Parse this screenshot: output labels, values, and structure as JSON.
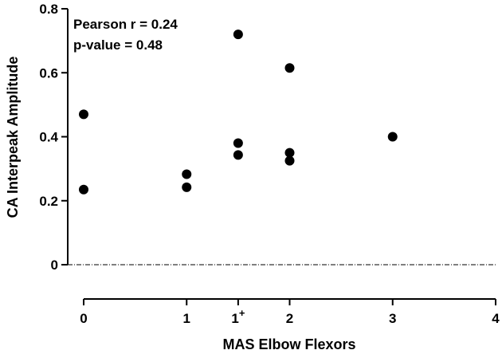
{
  "chart_data": {
    "type": "scatter",
    "title": "",
    "xlabel": "MAS Elbow Flexors",
    "ylabel": "CA Interpeak Amplitude",
    "xlim": [
      0,
      4
    ],
    "ylim": [
      0,
      0.8
    ],
    "x_ticks": [
      {
        "value": 0,
        "label": "0"
      },
      {
        "value": 1,
        "label": "1"
      },
      {
        "value": 1.5,
        "label": "1",
        "sup": "+"
      },
      {
        "value": 2,
        "label": "2"
      },
      {
        "value": 3,
        "label": "3"
      },
      {
        "value": 4,
        "label": "4"
      }
    ],
    "y_ticks": [
      {
        "value": 0,
        "label": "0"
      },
      {
        "value": 0.2,
        "label": "0.2"
      },
      {
        "value": 0.4,
        "label": "0.4"
      },
      {
        "value": 0.6,
        "label": "0.6"
      },
      {
        "value": 0.8,
        "label": "0.8"
      }
    ],
    "points": [
      {
        "x": 0,
        "y": 0.47
      },
      {
        "x": 0,
        "y": 0.235
      },
      {
        "x": 1,
        "y": 0.283
      },
      {
        "x": 1,
        "y": 0.242
      },
      {
        "x": 1.5,
        "y": 0.72
      },
      {
        "x": 1.5,
        "y": 0.38
      },
      {
        "x": 1.5,
        "y": 0.343
      },
      {
        "x": 2,
        "y": 0.615
      },
      {
        "x": 2,
        "y": 0.35
      },
      {
        "x": 2,
        "y": 0.325
      },
      {
        "x": 3,
        "y": 0.4
      }
    ],
    "annotations": [
      "Pearson r = 0.24",
      "p-value = 0.48"
    ],
    "reference_line": {
      "y": 0,
      "style": "dash-dot"
    },
    "grid": false,
    "marker_color": "#000000"
  }
}
